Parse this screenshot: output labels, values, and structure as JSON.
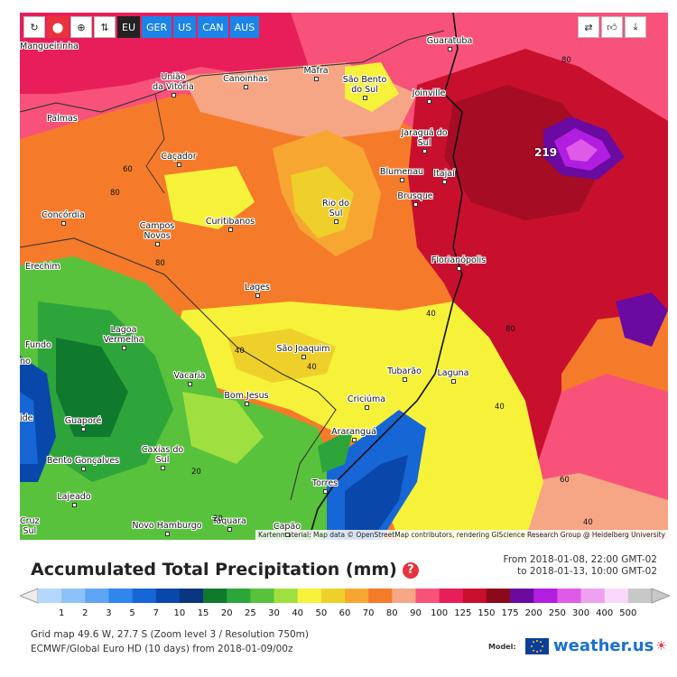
{
  "toolbar": {
    "refresh_icon": "refresh-icon",
    "pin_icon": "map-pin-icon",
    "zoom_icon": "zoom-in-icon",
    "sort_icon": "sort-arrows-icon",
    "regions": [
      "EU",
      "GER",
      "US",
      "CAN",
      "AUS"
    ],
    "share_icon": "share-icon",
    "like_icon": "thumbs-up-icon",
    "download_icon": "download-icon"
  },
  "places": [
    {
      "name": "Mangueirinha"
    },
    {
      "name": "Guaratuba"
    },
    {
      "name": "União\nda Vitória"
    },
    {
      "name": "Canoinhas"
    },
    {
      "name": "Mafra"
    },
    {
      "name": "São Bento\ndo Sul"
    },
    {
      "name": "Joinville"
    },
    {
      "name": "Palmas"
    },
    {
      "name": "Jaraguá do\nSul"
    },
    {
      "name": "Caçador"
    },
    {
      "name": "Blumenau"
    },
    {
      "name": "Itajaí"
    },
    {
      "name": "Brusque"
    },
    {
      "name": "Rio do\nSul"
    },
    {
      "name": "Concórdia"
    },
    {
      "name": "Curitibanos"
    },
    {
      "name": "Campos\nNovos"
    },
    {
      "name": "Florianópolis"
    },
    {
      "name": "Erechim"
    },
    {
      "name": "Lages"
    },
    {
      "name": "Lagoa\nVermelha"
    },
    {
      "name": "São Joaquim"
    },
    {
      "name": "Fundo"
    },
    {
      "name": "no"
    },
    {
      "name": "Tubarão"
    },
    {
      "name": "Laguna"
    },
    {
      "name": "Vacaria"
    },
    {
      "name": "Bom Jesus"
    },
    {
      "name": "Criciúma"
    },
    {
      "name": "ide"
    },
    {
      "name": "Guaporé"
    },
    {
      "name": "Araranguá"
    },
    {
      "name": "Caxias do\nSul"
    },
    {
      "name": "Bento Gonçalves"
    },
    {
      "name": "Torres"
    },
    {
      "name": "Lajeado"
    },
    {
      "name": "Cruz\nSul"
    },
    {
      "name": "Novo Hamburgo"
    },
    {
      "name": "Taquara"
    },
    {
      "name": "Capão"
    }
  ],
  "contour_labels": [
    "80",
    "60",
    "80",
    "80",
    "40",
    "40",
    "80",
    "40",
    "20",
    "20",
    "40",
    "60",
    "40"
  ],
  "max_value": "219",
  "attribution": "Kartenmaterial: Map data © OpenStreetMap contributors, rendering GIScience Research Group @ Heidelberg University",
  "title": "Accumulated Total Precipitation (mm)",
  "period": {
    "from": "From 2018-01-08, 22:00 GMT-02",
    "to": "to 2018-01-13, 10:00 GMT-02"
  },
  "scale": {
    "labels": [
      "1",
      "2",
      "3",
      "5",
      "7",
      "10",
      "15",
      "20",
      "25",
      "30",
      "40",
      "50",
      "60",
      "70",
      "80",
      "90",
      "100",
      "125",
      "150",
      "175",
      "200",
      "250",
      "300",
      "400",
      "500"
    ],
    "colors": [
      "#b4d8fb",
      "#8cc2f7",
      "#5ea6f3",
      "#2f86eb",
      "#1766d6",
      "#0a47aa",
      "#0a3580",
      "#0f7a2d",
      "#2ea53a",
      "#58c23c",
      "#9fe040",
      "#f6f23a",
      "#efd02a",
      "#f7a632",
      "#f57b2a",
      "#f6a585",
      "#f8527a",
      "#e81e5a",
      "#c8102e",
      "#8a0a1c",
      "#6a0aa0",
      "#b21ee0",
      "#e05ae8",
      "#f0a0f0",
      "#f9d8f9",
      "#c8c8c8"
    ]
  },
  "info": {
    "grid": "Grid map 49.6 W, 27.7 S (Zoom level 3 / Resolution 750m)",
    "model_run": "ECMWF/Global Euro HD (10 days) from 2018-01-09/00z"
  },
  "model_label": "Model:",
  "logo_text": "weather.us"
}
